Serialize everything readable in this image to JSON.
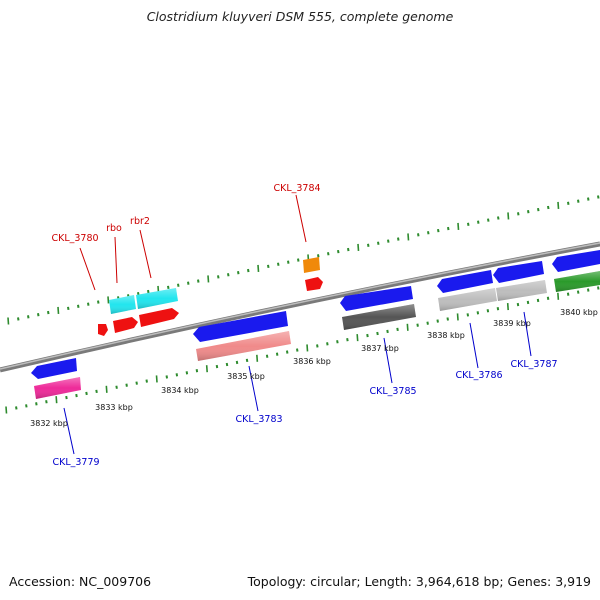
{
  "title": "Clostridium kluyveri DSM 555, complete genome",
  "footer": {
    "accession": "Accession: NC_009706",
    "summary": "Topology: circular; Length: 3,964,618 bp; Genes: 3,919"
  },
  "colors": {
    "backbone": "#8c8c8c",
    "tick": "#2e8b2e",
    "forward_label": "#cc0000",
    "reverse_label": "#0000cc",
    "blue_arrow": "#1a1aee",
    "cyan": "#22e5ee",
    "red": "#ee1111",
    "orange": "#f0890a",
    "pink": "#ee2a99",
    "salmon": "#f08a8a",
    "dark_gray": "#555555",
    "light_gray": "#bdbdbd",
    "green": "#2a9a2a"
  },
  "tick_labels": [
    {
      "id": "t3832",
      "text": "3832 kbp"
    },
    {
      "id": "t3833",
      "text": "3833 kbp"
    },
    {
      "id": "t3834",
      "text": "3834 kbp"
    },
    {
      "id": "t3835",
      "text": "3835 kbp"
    },
    {
      "id": "t3836",
      "text": "3836 kbp"
    },
    {
      "id": "t3837",
      "text": "3837 kbp"
    },
    {
      "id": "t3838",
      "text": "3838 kbp"
    },
    {
      "id": "t3839",
      "text": "3839 kbp"
    },
    {
      "id": "t3840",
      "text": "3840 kbp"
    }
  ],
  "gene_labels": [
    {
      "id": "l3780",
      "text": "CKL_3780",
      "strand": "forward"
    },
    {
      "id": "lrbo",
      "text": "rbo",
      "strand": "forward"
    },
    {
      "id": "lrbr2",
      "text": "rbr2",
      "strand": "forward"
    },
    {
      "id": "l3784",
      "text": "CKL_3784",
      "strand": "forward"
    },
    {
      "id": "l3779",
      "text": "CKL_3779",
      "strand": "reverse"
    },
    {
      "id": "l3783",
      "text": "CKL_3783",
      "strand": "reverse"
    },
    {
      "id": "l3785",
      "text": "CKL_3785",
      "strand": "reverse"
    },
    {
      "id": "l3786",
      "text": "CKL_3786",
      "strand": "reverse"
    },
    {
      "id": "l3787",
      "text": "CKL_3787",
      "strand": "reverse"
    }
  ]
}
